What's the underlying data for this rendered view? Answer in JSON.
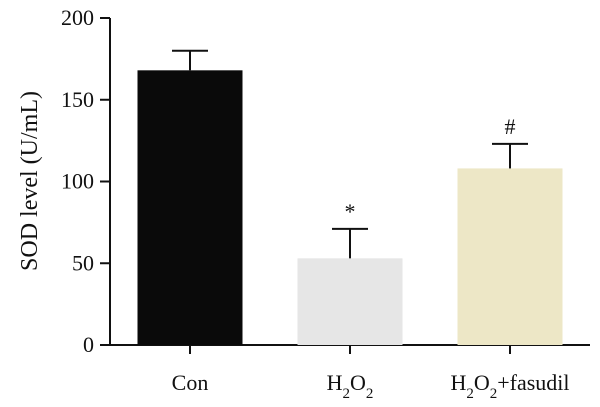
{
  "chart_data": {
    "type": "bar",
    "title": "",
    "xlabel": "",
    "ylabel": "SOD level (U/mL)",
    "ylim": [
      0,
      200
    ],
    "yticks": [
      0,
      50,
      100,
      150,
      200
    ],
    "categories": [
      {
        "base": "Con",
        "suffix": ""
      },
      {
        "base": "H",
        "sub1": "2",
        "mid": "O",
        "sub2": "2",
        "suffix": ""
      },
      {
        "base": "H",
        "sub1": "2",
        "mid": "O",
        "sub2": "2",
        "suffix": "+fasudil"
      }
    ],
    "values": [
      168,
      53,
      108
    ],
    "error": [
      12,
      18,
      15
    ],
    "annotations": [
      "",
      "*",
      "#"
    ],
    "colors": [
      "#0a0a0a",
      "#e6e6e6",
      "#ede7c6"
    ],
    "grid": false,
    "legend": false
  }
}
